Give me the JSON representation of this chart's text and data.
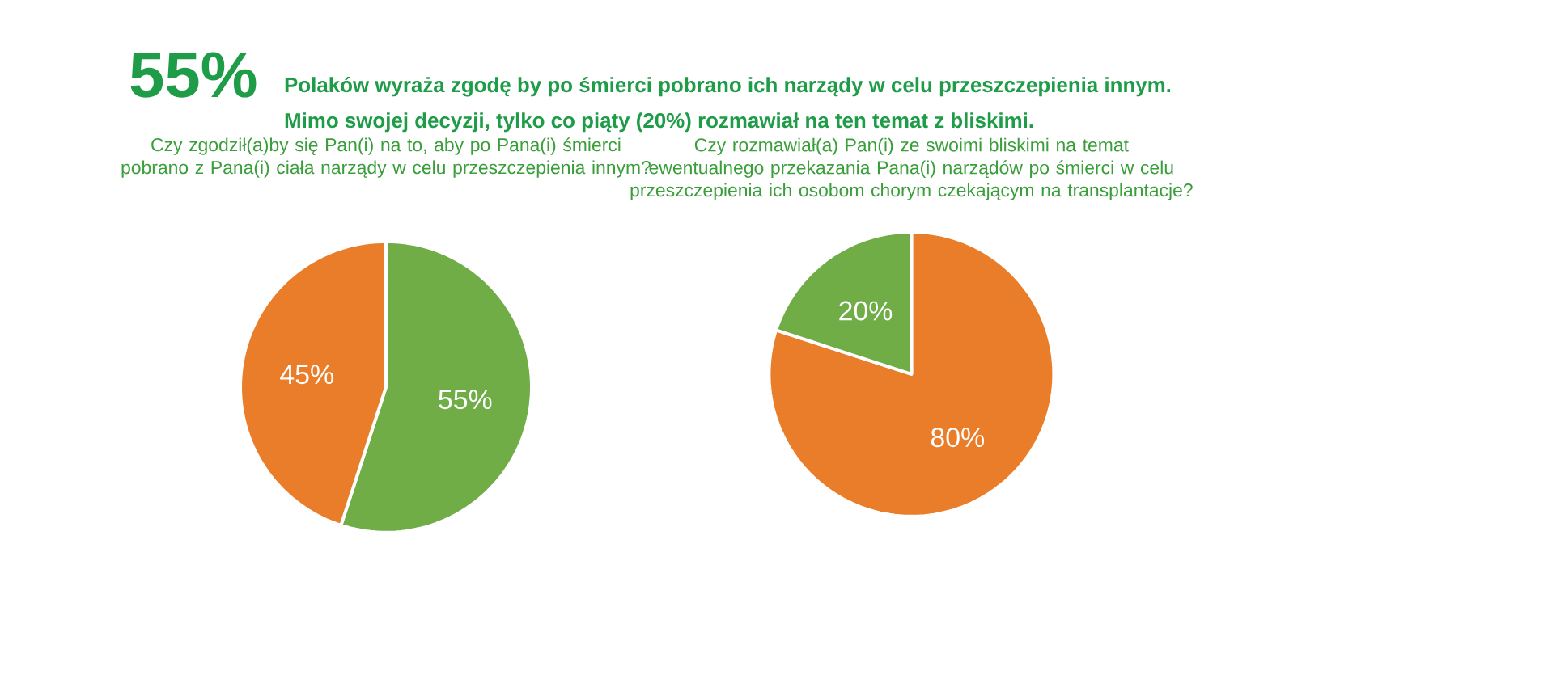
{
  "chart_data": [
    {
      "type": "pie",
      "title": "Czy zgodził(a)by się Pan(i) na to, aby po Pana(i) śmierci pobrano z Pana(i) ciała narządy w celu przeszczepienia innym?",
      "categories": [
        null,
        null
      ],
      "values": [
        55,
        45
      ],
      "colors": [
        "#70ad47",
        "#ea7d2a"
      ],
      "value_labels": [
        "55%",
        "45%"
      ],
      "annotations": [
        "55%",
        "Polaków wyraża zgodę by po śmierci pobrano ich narządy w celu przeszczepienia innym.",
        "Mimo swojej decyzji, tylko co piąty (20%) rozmawiał na ten temat z bliskimi."
      ]
    },
    {
      "type": "pie",
      "title": "Czy rozmawiał(a) Pan(i) ze swoimi bliskimi na temat ewentualnego przekazania Pana(i) narządów po śmierci w celu przeszczepienia ich osobom chorym czekającym na transplantacje?",
      "categories": [
        null,
        null
      ],
      "values": [
        80,
        20
      ],
      "colors": [
        "#ea7d2a",
        "#70ad47"
      ],
      "value_labels": [
        "80%",
        "20%"
      ]
    }
  ]
}
